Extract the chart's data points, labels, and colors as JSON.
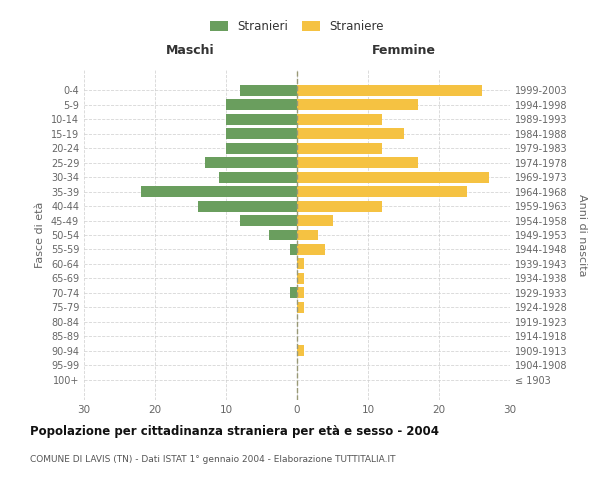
{
  "age_groups": [
    "100+",
    "95-99",
    "90-94",
    "85-89",
    "80-84",
    "75-79",
    "70-74",
    "65-69",
    "60-64",
    "55-59",
    "50-54",
    "45-49",
    "40-44",
    "35-39",
    "30-34",
    "25-29",
    "20-24",
    "15-19",
    "10-14",
    "5-9",
    "0-4"
  ],
  "birth_years": [
    "≤ 1903",
    "1904-1908",
    "1909-1913",
    "1914-1918",
    "1919-1923",
    "1924-1928",
    "1929-1933",
    "1934-1938",
    "1939-1943",
    "1944-1948",
    "1949-1953",
    "1954-1958",
    "1959-1963",
    "1964-1968",
    "1969-1973",
    "1974-1978",
    "1979-1983",
    "1984-1988",
    "1989-1993",
    "1994-1998",
    "1999-2003"
  ],
  "maschi": [
    0,
    0,
    0,
    0,
    0,
    0,
    1,
    0,
    0,
    1,
    4,
    8,
    14,
    22,
    11,
    13,
    10,
    10,
    10,
    10,
    8
  ],
  "femmine": [
    0,
    0,
    1,
    0,
    0,
    1,
    1,
    1,
    1,
    4,
    3,
    5,
    12,
    24,
    27,
    17,
    12,
    15,
    12,
    17,
    26
  ],
  "color_maschi": "#6a9e5e",
  "color_femmine": "#f5c242",
  "title": "Popolazione per cittadinanza straniera per età e sesso - 2004",
  "subtitle": "COMUNE DI LAVIS (TN) - Dati ISTAT 1° gennaio 2004 - Elaborazione TUTTITALIA.IT",
  "label_left": "Maschi",
  "label_right": "Femmine",
  "ylabel_left": "Fasce di età",
  "ylabel_right": "Anni di nascita",
  "legend_maschi": "Stranieri",
  "legend_femmine": "Straniere",
  "xlim": 30,
  "background_color": "#ffffff",
  "grid_color": "#cccccc"
}
